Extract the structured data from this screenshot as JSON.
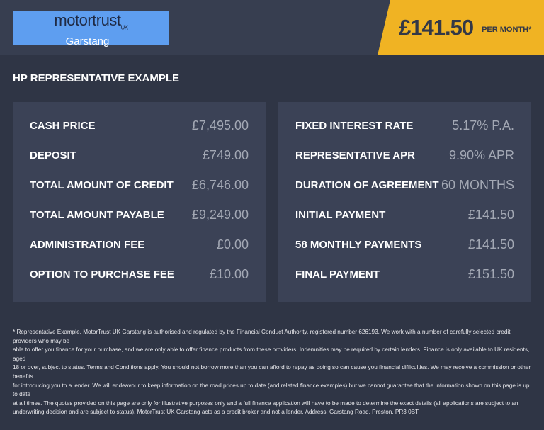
{
  "header": {
    "logo": {
      "brand": "motortrust",
      "suffix": "UK",
      "location": "Garstang"
    },
    "price": "£141.50",
    "per_month": "PER MONTH*",
    "accent": "#f0b323"
  },
  "title": "HP REPRESENTATIVE EXAMPLE",
  "left": [
    {
      "label": "CASH PRICE",
      "value": "£7,495.00"
    },
    {
      "label": "DEPOSIT",
      "value": "£749.00"
    },
    {
      "label": "TOTAL AMOUNT OF CREDIT",
      "value": "£6,746.00"
    },
    {
      "label": "TOTAL AMOUNT PAYABLE",
      "value": "£9,249.00"
    },
    {
      "label": "ADMINISTRATION FEE",
      "value": "£0.00"
    },
    {
      "label": "OPTION TO PURCHASE FEE",
      "value": "£10.00"
    }
  ],
  "right": [
    {
      "label": "FIXED INTEREST RATE",
      "value": "5.17% P.A."
    },
    {
      "label": "REPRESENTATIVE APR",
      "value": "9.90% APR"
    },
    {
      "label": "DURATION OF AGREEMENT",
      "value": "60 MONTHS"
    },
    {
      "label": "INITIAL PAYMENT",
      "value": "£141.50"
    },
    {
      "label": "58 MONTHLY PAYMENTS",
      "value": "£141.50"
    },
    {
      "label": "FINAL PAYMENT",
      "value": "£151.50"
    }
  ],
  "footer": [
    "* Representative Example. MotorTrust UK Garstang is authorised and regulated by the Financial Conduct Authority, registered number 626193. We work with a number of carefully selected credit providers who may be",
    "able to offer you finance for your purchase, and we are only able to offer finance products from these providers. Indemnities may be required by certain lenders. Finance is only available to UK residents, aged",
    "18 or over, subject to status. Terms and Conditions apply. You should not borrow more than you can afford to repay as doing so can cause you financial difficulties. We may receive a commission or other benefits",
    "for introducing you to a lender. We will endeavour to keep information on the road prices up to date (and related finance examples) but we cannot guarantee that the information shown on this page is up to date",
    "at all times. The quotes provided on this page are only for illustrative purposes only and a full finance application will have to be made to determine the exact details (all applications are subject to an",
    "underwriting decision and are subject to status). MotorTrust UK Garstang acts as a credit broker and not a lender. Address: Garstang Road, Preston, PR3 0BT"
  ]
}
